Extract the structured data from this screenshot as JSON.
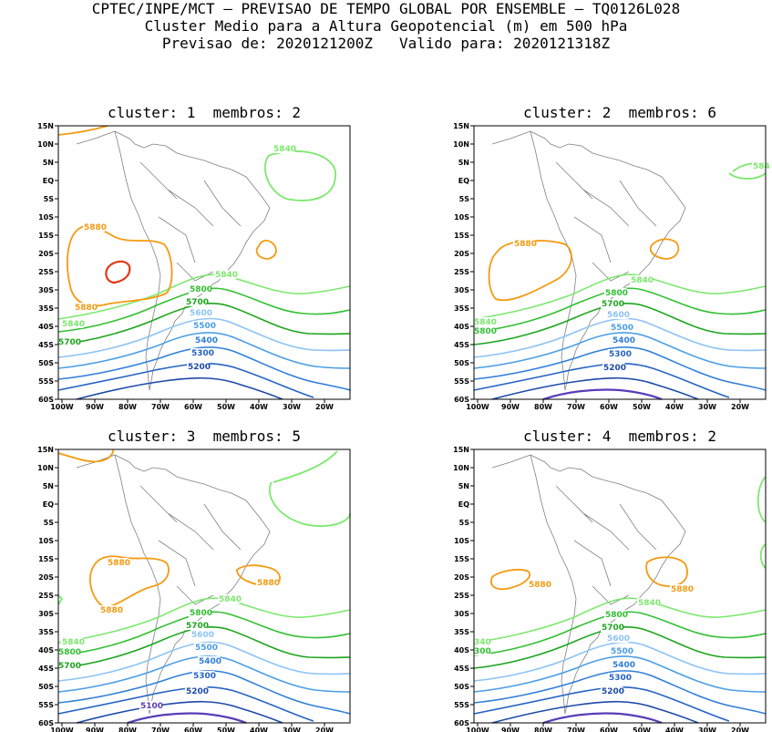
{
  "header": {
    "line1": "CPTEC/INPE/MCT — PREVISAO DE TEMPO GLOBAL POR ENSEMBLE — TQ0126L028",
    "line2": "Cluster Medio para a Altura Geopotencial (m) em 500 hPa",
    "line3": "Previsao de: 2020121200Z   Valido para: 2020121318Z"
  },
  "axes": {
    "lat_labels": [
      "15N",
      "10N",
      "5N",
      "EQ",
      "5S",
      "10S",
      "15S",
      "20S",
      "25S",
      "30S",
      "35S",
      "40S",
      "45S",
      "50S",
      "55S",
      "60S"
    ],
    "lon_labels": [
      "100W",
      "90W",
      "80W",
      "70W",
      "60W",
      "50W",
      "40W",
      "30W",
      "20W"
    ]
  },
  "colors": {
    "c5880": "#f59a12",
    "c5900": "#e03a1c",
    "c5840": "#7ce86e",
    "c5800": "#33c033",
    "c5700": "#1ea51e",
    "c5600": "#8cc3f5",
    "c5500": "#4a9ee6",
    "c5400": "#2f7fd9",
    "c5300": "#2563c4",
    "c5200": "#1c4aa8",
    "c5100": "#5a3cb8",
    "coast": "#808080"
  },
  "panels": [
    {
      "title": "cluster: 1  membros: 2",
      "labels": {
        "l5880a": "5880",
        "l5880b": "5880",
        "l5840a": "5840",
        "l5840b": "5840",
        "l5840c": "5840",
        "l5800": "5800",
        "l5700a": "5700",
        "l5700b": "5700",
        "l5600": "5600",
        "l5500": "5500",
        "l5400": "5400",
        "l5300": "5300",
        "l5200": "5200"
      }
    },
    {
      "title": "cluster: 2  membros: 6",
      "labels": {
        "l5880a": "5880",
        "l5840a": "5840",
        "l5840b": "5840",
        "l5840c": "584",
        "l5800a": "5800",
        "l5800b": "5800",
        "l5700": "5700",
        "l5600": "5600",
        "l5500": "5500",
        "l5400": "5400",
        "l5300": "5300",
        "l5200": "5200"
      }
    },
    {
      "title": "cluster: 3  membros: 5",
      "labels": {
        "l5880a": "5880",
        "l5880b": "5880",
        "l5880c": "5880",
        "l5840a": "5840",
        "l5840b": "5840",
        "l5800a": "5800",
        "l5800b": "5800",
        "l5700a": "5700",
        "l5700b": "5700",
        "l5600": "5600",
        "l5500": "5500",
        "l5400": "5400",
        "l5300": "5300",
        "l5200": "5200",
        "l5100": "5100"
      }
    },
    {
      "title": "cluster: 4  membros: 2",
      "labels": {
        "l5880a": "5880",
        "l5880b": "5880",
        "l5840a": "5840",
        "l5840b": "340",
        "l5800a": "5800",
        "l5800b": "300",
        "l5700": "5700",
        "l5600": "5600",
        "l5500": "5500",
        "l5400": "5400",
        "l5300": "5300",
        "l5200": "5200"
      }
    }
  ]
}
